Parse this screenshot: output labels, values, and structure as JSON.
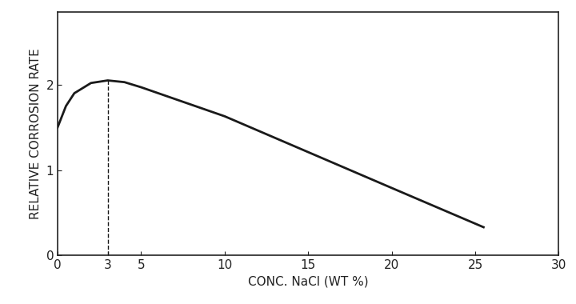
{
  "chart_data": {
    "type": "line",
    "x_label": "CONC. NaCl (WT %)",
    "y_label": "RELATIVE CORROSION RATE",
    "series": [
      {
        "type": "line",
        "color": "#1a1a1a",
        "line_style": "solid",
        "x": [
          0,
          0.5,
          1,
          2,
          3,
          4,
          5,
          10,
          15,
          20,
          25.5
        ],
        "values": [
          1.5,
          1.75,
          1.9,
          2.02,
          2.05,
          2.03,
          1.97,
          1.63,
          1.21,
          0.79,
          0.33
        ]
      },
      {
        "type": "line",
        "color": "#1a1a1a",
        "line_style": "dashed",
        "x": [
          3,
          3
        ],
        "values": [
          0,
          2.05
        ]
      }
    ],
    "xlim": [
      0,
      30
    ],
    "xticks": [
      0,
      3,
      5,
      10,
      15,
      20,
      25,
      30
    ],
    "ylim": [
      0,
      2.85
    ],
    "yticks": [
      0,
      1,
      2
    ],
    "grid": false
  }
}
